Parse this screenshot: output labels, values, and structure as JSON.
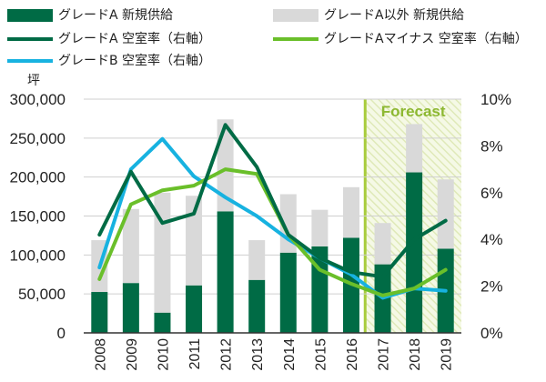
{
  "chart_data": {
    "type": "bar+line",
    "categories": [
      "2008",
      "2009",
      "2010",
      "2011",
      "2012",
      "2013",
      "2014",
      "2015",
      "2016",
      "2017",
      "2018",
      "2019"
    ],
    "y_left": {
      "unit_label": "坪",
      "range": [
        0,
        300000
      ],
      "ticks": [
        "0",
        "50,000",
        "100,000",
        "150,000",
        "200,000",
        "250,000",
        "300,000"
      ]
    },
    "y_right": {
      "range": [
        0,
        10
      ],
      "ticks": [
        "0%",
        "2%",
        "4%",
        "6%",
        "8%",
        "10%"
      ]
    },
    "grid": true,
    "forecast": {
      "label": "Forecast",
      "from": "2017",
      "to": "2019"
    },
    "bars": [
      {
        "name": "グレードA 新規供給",
        "color": "#006b45",
        "values": [
          52500,
          64000,
          26000,
          61000,
          156000,
          68000,
          103000,
          111000,
          122000,
          88000,
          206000,
          108000
        ]
      },
      {
        "name": "グレードA以外 新規供給",
        "color": "#d9d9d9",
        "values": [
          66500,
          95000,
          154000,
          115000,
          118000,
          51000,
          75000,
          47000,
          65000,
          53000,
          62000,
          89000
        ]
      }
    ],
    "lines": [
      {
        "name": "グレードA 空室率（右軸）",
        "color": "#006b45",
        "values": [
          4.2,
          6.9,
          4.7,
          5.1,
          8.9,
          7.1,
          4.2,
          3.2,
          2.6,
          2.4,
          4.0,
          4.8
        ]
      },
      {
        "name": "グレードAマイナス 空室率（右軸）",
        "color": "#6abf2a",
        "values": [
          2.3,
          5.5,
          6.1,
          6.3,
          7.0,
          6.8,
          4.2,
          2.7,
          2.1,
          1.6,
          1.9,
          2.7
        ]
      },
      {
        "name": "グレードB 空室率（右軸）",
        "color": "#17b2e0",
        "values": [
          2.8,
          7.0,
          8.3,
          6.7,
          5.8,
          5.0,
          4.0,
          3.2,
          2.5,
          1.5,
          1.9,
          1.8
        ]
      }
    ]
  }
}
